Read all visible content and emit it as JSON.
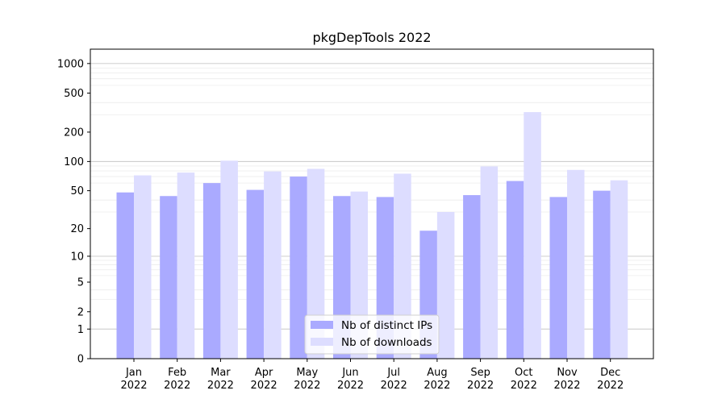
{
  "chart_data": {
    "type": "bar",
    "title": "pkgDepTools 2022",
    "xlabel": "",
    "ylabel": "",
    "categories": [
      "Jan\n2022",
      "Feb\n2022",
      "Mar\n2022",
      "Apr\n2022",
      "May\n2022",
      "Jun\n2022",
      "Jul\n2022",
      "Aug\n2022",
      "Sep\n2022",
      "Oct\n2022",
      "Nov\n2022",
      "Dec\n2022"
    ],
    "series": [
      {
        "name": "Nb of distinct IPs",
        "color": "#aaaaff",
        "values": [
          48,
          44,
          60,
          51,
          70,
          44,
          43,
          19,
          45,
          63,
          43,
          50
        ]
      },
      {
        "name": "Nb of downloads",
        "color": "#ddddff",
        "values": [
          72,
          77,
          102,
          79,
          84,
          49,
          75,
          30,
          89,
          320,
          82,
          64
        ]
      }
    ],
    "y_scale": "log1p",
    "y_ticks": [
      0,
      1,
      2,
      5,
      10,
      20,
      50,
      100,
      200,
      500,
      1000
    ],
    "y_tick_labels": [
      "0",
      "1",
      "2",
      "5",
      "10",
      "20",
      "50",
      "100",
      "200",
      "500",
      "1000"
    ],
    "ylim": [
      0,
      1400
    ],
    "grid": true,
    "legend_placement": "lower center"
  }
}
